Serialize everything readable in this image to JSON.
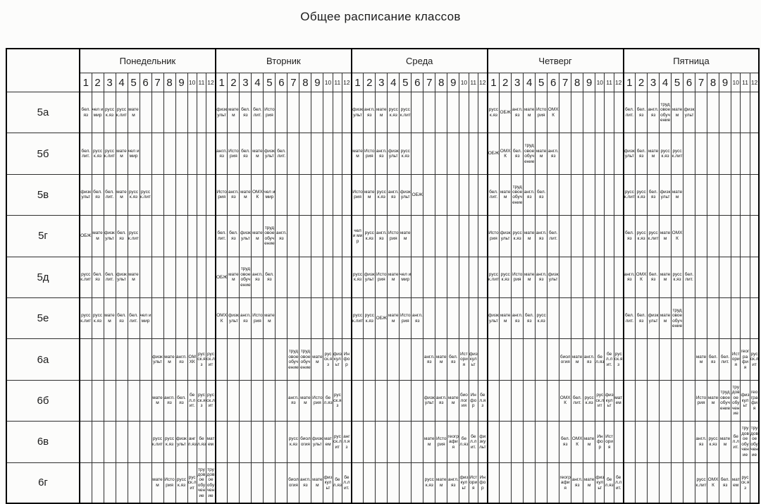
{
  "title": "Общее расписание классов",
  "table": {
    "days": [
      "Понедельник",
      "Вторник",
      "Среда",
      "Четверг",
      "Пятница"
    ],
    "lesson_numbers": [
      "1",
      "2",
      "3",
      "4",
      "5",
      "6",
      "7",
      "8",
      "9",
      "10",
      "11",
      "12"
    ],
    "classes": [
      "5а",
      "5б",
      "5в",
      "5г",
      "5д",
      "5е",
      "6а",
      "6б",
      "6в",
      "6г"
    ],
    "schedule": [
      {
        "class": "5а",
        "days": [
          [
            "бел.яз",
            "чел и мир",
            "русск.яз",
            "русск.лит",
            "матем",
            "",
            "",
            "",
            "",
            "",
            "",
            ""
          ],
          [
            "физкульт",
            "матем",
            "бел.яз",
            "бел.лит.",
            "История",
            "",
            "",
            "",
            "",
            "",
            "",
            ""
          ],
          [
            "физкульт",
            "англ.яз",
            "матем",
            "русск.яз",
            "русск.лит",
            "",
            "",
            "",
            "",
            "",
            "",
            ""
          ],
          [
            "русск.яз",
            "ОБЖ",
            "англ.яз",
            "матем",
            "История",
            "ОМХК",
            "",
            "",
            "",
            "",
            "",
            ""
          ],
          [
            "бел.лит.",
            "бел.яз",
            "англ.яз",
            "трудовое обучение",
            "матем",
            "физкульт",
            "",
            "",
            "",
            "",
            "",
            ""
          ]
        ]
      },
      {
        "class": "5б",
        "days": [
          [
            "бел.лит.",
            "русск.яз",
            "русск.лит",
            "матем",
            "чел и мир",
            "",
            "",
            "",
            "",
            "",
            "",
            ""
          ],
          [
            "англ.яз",
            "История",
            "бел.яз",
            "матем",
            "физкульт",
            "бел.лит.",
            "",
            "",
            "",
            "",
            "",
            ""
          ],
          [
            "матем",
            "История",
            "англ.яз",
            "физкульт",
            "русск.яз",
            "",
            "",
            "",
            "",
            "",
            "",
            ""
          ],
          [
            "ОБЖ",
            "ОМХК",
            "бел.яз",
            "трудовое обучение",
            "матем",
            "англ.яз",
            "",
            "",
            "",
            "",
            "",
            ""
          ],
          [
            "физкульт",
            "бел.яз",
            "матем",
            "русск.яз",
            "русск.лит",
            "",
            "",
            "",
            "",
            "",
            "",
            ""
          ]
        ]
      },
      {
        "class": "5в",
        "days": [
          [
            "физкульт",
            "бел.яз",
            "бел.лит.",
            "матем",
            "русск.яз",
            "русск.лит",
            "",
            "",
            "",
            "",
            "",
            ""
          ],
          [
            "История",
            "англ.яз",
            "матем",
            "ОМХК",
            "чел и мир",
            "",
            "",
            "",
            "",
            "",
            "",
            ""
          ],
          [
            "История",
            "матем",
            "русск.яз",
            "англ.яз",
            "физкульт",
            "ОБЖ",
            "",
            "",
            "",
            "",
            "",
            ""
          ],
          [
            "бел.лит.",
            "матем",
            "трудовое обучение",
            "англ.яз",
            "бел.яз",
            "",
            "",
            "",
            "",
            "",
            "",
            ""
          ],
          [
            "русск.лит",
            "русск.яз",
            "бел.яз",
            "физкульт",
            "матем",
            "",
            "",
            "",
            "",
            "",
            "",
            ""
          ]
        ]
      },
      {
        "class": "5г",
        "days": [
          [
            "ОБЖ",
            "матем",
            "физкульт",
            "бел.яз",
            "русск.лит",
            "",
            "",
            "",
            "",
            "",
            "",
            ""
          ],
          [
            "бел.лит.",
            "бел.яз",
            "физкульт",
            "матем",
            "трудовое обучение",
            "англ.яз",
            "",
            "",
            "",
            "",
            "",
            ""
          ],
          [
            "чел и мир",
            "русск.яз",
            "англ.яз",
            "История",
            "матем",
            "",
            "",
            "",
            "",
            "",
            "",
            ""
          ],
          [
            "История",
            "физкульт",
            "русск.яз",
            "матем",
            "англ.яз",
            "бел.лит.",
            "",
            "",
            "",
            "",
            "",
            ""
          ],
          [
            "бел.яз",
            "русск.яз",
            "русск.лит",
            "матем",
            "ОМХК",
            "",
            "",
            "",
            "",
            "",
            "",
            ""
          ]
        ]
      },
      {
        "class": "5д",
        "days": [
          [
            "русск.лит",
            "бел.яз",
            "бел.лит.",
            "физкульт",
            "матем",
            "",
            "",
            "",
            "",
            "",
            "",
            ""
          ],
          [
            "ОБЖ",
            "матем",
            "трудовое обучение",
            "англ.яз",
            "бел.яз",
            "",
            "",
            "",
            "",
            "",
            "",
            ""
          ],
          [
            "русск.яз",
            "физкульт",
            "История",
            "матем",
            "чел и мир",
            "",
            "",
            "",
            "",
            "",
            "",
            ""
          ],
          [
            "русск.лит",
            "русск.яз",
            "История",
            "матем",
            "англ.яз",
            "физкульт",
            "",
            "",
            "",
            "",
            "",
            ""
          ],
          [
            "англ.яз",
            "ОМХК",
            "бел.яз",
            "матем",
            "русск.яз",
            "бел.лит.",
            "",
            "",
            "",
            "",
            "",
            ""
          ]
        ]
      },
      {
        "class": "5е",
        "days": [
          [
            "русск.лит",
            "русск.яз",
            "матем",
            "бел.яз",
            "бел.лит.",
            "чел и мир",
            "",
            "",
            "",
            "",
            "",
            ""
          ],
          [
            "ОМХК",
            "физкульт",
            "англ.яз",
            "История",
            "матем",
            "",
            "",
            "",
            "",
            "",
            "",
            ""
          ],
          [
            "русск.лит",
            "русск.яз",
            "ОБЖ",
            "матем",
            "История",
            "англ.яз",
            "",
            "",
            "",
            "",
            "",
            ""
          ],
          [
            "физкульт",
            "матем",
            "англ.яз",
            "бел.яз",
            "русск.яз",
            "",
            "",
            "",
            "",
            "",
            "",
            ""
          ],
          [
            "бел.лит.",
            "бел.яз",
            "физкульт",
            "матем",
            "трудовое обучение",
            "",
            "",
            "",
            "",
            "",
            "",
            ""
          ]
        ]
      },
      {
        "class": "6а",
        "days": [
          [
            "",
            "",
            "",
            "",
            "",
            "",
            "физкульт",
            "матем",
            "англ.яз",
            "ОМХК",
            "русск.яз",
            "русск.лит"
          ],
          [
            "",
            "",
            "",
            "",
            "",
            "",
            "трудовое обучение",
            "трудовое обучение",
            "матем",
            "русск.яз",
            "физкульт",
            "Инфор"
          ],
          [
            "",
            "",
            "",
            "",
            "",
            "",
            "англ.яз",
            "матем",
            "бел.яз",
            "История",
            "физкульт",
            ""
          ],
          [
            "",
            "",
            "",
            "",
            "",
            "",
            "биология",
            "матем",
            "англ.яз",
            "бел.яз",
            "бел.лит.",
            "русск.яз"
          ],
          [
            "",
            "",
            "",
            "",
            "",
            "",
            "матем",
            "бел.яз",
            "бел.лит.",
            "История",
            "география",
            "русск.лит"
          ]
        ]
      },
      {
        "class": "6б",
        "days": [
          [
            "",
            "",
            "",
            "",
            "",
            "",
            "матем",
            "англ.яз",
            "бел.яз",
            "бел.лит.",
            "русск.яз",
            "русск.лит"
          ],
          [
            "",
            "",
            "",
            "",
            "",
            "",
            "англ.яз",
            "матем",
            "История",
            "бел.яз",
            "русск.яз",
            ""
          ],
          [
            "",
            "",
            "",
            "",
            "",
            "",
            "физкульт",
            "англ.яз",
            "матем",
            "биология",
            "Инфор",
            "бел.яз"
          ],
          [
            "",
            "",
            "",
            "",
            "",
            "",
            "ОМХК",
            "бел.лит.",
            "русск.яз",
            "русск.лит",
            "физкульт",
            "матем"
          ],
          [
            "",
            "",
            "",
            "",
            "",
            "",
            "История",
            "матем",
            "трудовое обучение",
            "трудовое обучение",
            "физкульт",
            "география"
          ]
        ]
      },
      {
        "class": "6в",
        "days": [
          [
            "",
            "",
            "",
            "",
            "",
            "",
            "русск.лит",
            "русск.яз",
            "физкульт",
            "англ.яз",
            "бел.яз",
            "матем"
          ],
          [
            "",
            "",
            "",
            "",
            "",
            "",
            "русск.яз",
            "биология",
            "физкульт",
            "матем",
            "русск.лит",
            "англ.яз"
          ],
          [
            "",
            "",
            "",
            "",
            "",
            "",
            "матем",
            "История",
            "география",
            "бел.яз",
            "бел.лит.",
            "физкульт"
          ],
          [
            "",
            "",
            "",
            "",
            "",
            "",
            "бел.яз",
            "ОМХК",
            "матем",
            "Инфор",
            "История",
            ""
          ],
          [
            "",
            "",
            "",
            "",
            "",
            "",
            "англ.яз",
            "русск.яз",
            "матем",
            "бел.лит.",
            "трудовое обучение",
            "трудовое обучение"
          ]
        ]
      },
      {
        "class": "6г",
        "days": [
          [
            "",
            "",
            "",
            "",
            "",
            "",
            "матем",
            "История",
            "русск.яз",
            "русск.лит",
            "трудовое обучение",
            "трудовое обучение"
          ],
          [
            "",
            "",
            "",
            "",
            "",
            "",
            "биология",
            "англ.яз",
            "матем",
            "физкульт",
            "бел.яз",
            "бел.лит."
          ],
          [
            "",
            "",
            "",
            "",
            "",
            "",
            "русск.яз",
            "матем",
            "англ.яз",
            "физкульт",
            "История",
            "Инфор"
          ],
          [
            "",
            "",
            "",
            "",
            "",
            "",
            "география",
            "англ.яз",
            "матем",
            "физкульт",
            "бел.яз",
            "бел.лит."
          ],
          [
            "",
            "",
            "",
            "",
            "",
            "",
            "русск.лит",
            "ОМХК",
            "бел.яз",
            "матем",
            "русск.яз",
            ""
          ]
        ]
      }
    ]
  }
}
